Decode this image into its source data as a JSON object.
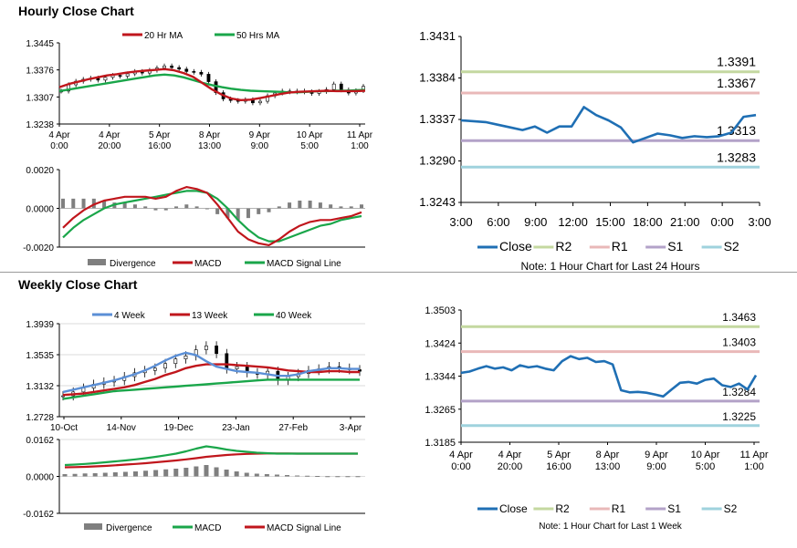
{
  "sections": {
    "hourly_title": "Hourly Close Chart",
    "weekly_title": "Weekly Close Chart"
  },
  "colors": {
    "close": "#1f6fb4",
    "ma20": "#c0161c",
    "ma50": "#1aa64a",
    "r2": "#c4d8a0",
    "r1": "#e9b8b8",
    "s1": "#b3a2c8",
    "s2": "#9fd2dd",
    "divergence": "#7f7f7f",
    "week4": "#5b8fd6"
  },
  "chart_data": [
    {
      "id": "hourly_price",
      "type": "candlestick",
      "ylim": [
        1.3238,
        1.3445
      ],
      "yticks": [
        "1.3445",
        "1.3376",
        "1.3307",
        "1.3238"
      ],
      "x_tick_labels": [
        [
          "4 Apr",
          "0:00"
        ],
        [
          "4 Apr",
          "20:00"
        ],
        [
          "5 Apr",
          "16:00"
        ],
        [
          "8 Apr",
          "13:00"
        ],
        [
          "9 Apr",
          "9:00"
        ],
        [
          "10 Apr",
          "5:00"
        ],
        [
          "11 Apr",
          "1:00"
        ]
      ],
      "legend": [
        "20 Hr MA",
        "50 Hrs MA"
      ],
      "close": [
        1.3322,
        1.3338,
        1.3347,
        1.3352,
        1.3355,
        1.335,
        1.3357,
        1.3362,
        1.336,
        1.3366,
        1.3372,
        1.3368,
        1.3375,
        1.3381,
        1.3386,
        1.3382,
        1.3378,
        1.3372,
        1.337,
        1.3365,
        1.3346,
        1.3318,
        1.3302,
        1.3298,
        1.3296,
        1.33,
        1.3292,
        1.3296,
        1.331,
        1.3317,
        1.3322,
        1.332,
        1.3322,
        1.332,
        1.3316,
        1.3321,
        1.3326,
        1.334,
        1.3325,
        1.3317,
        1.3323,
        1.3334
      ],
      "ma20": [
        1.3332,
        1.334,
        1.3346,
        1.3352,
        1.3357,
        1.3362,
        1.3365,
        1.3369,
        1.3372,
        1.3374,
        1.3376,
        1.3378,
        1.3375,
        1.3368,
        1.3358,
        1.3342,
        1.3326,
        1.3313,
        1.3303,
        1.3299,
        1.33,
        1.3304,
        1.3309,
        1.3314,
        1.3318,
        1.332,
        1.3321,
        1.3322,
        1.3323,
        1.3322,
        1.3322,
        1.3322,
        1.3323
      ],
      "ma50": [
        1.3322,
        1.3326,
        1.333,
        1.3334,
        1.3338,
        1.3342,
        1.3346,
        1.335,
        1.3354,
        1.3358,
        1.3362,
        1.3364,
        1.3362,
        1.3357,
        1.335,
        1.3343,
        1.3337,
        1.3332,
        1.3328,
        1.3325,
        1.3323,
        1.3322,
        1.3321,
        1.332,
        1.3319,
        1.3319,
        1.332,
        1.3322,
        1.3322,
        1.3323,
        1.3323,
        1.3324,
        1.3325
      ]
    },
    {
      "id": "hourly_macd",
      "type": "macd",
      "ylim": [
        -0.002,
        0.002
      ],
      "yticks": [
        "0.0020",
        "0.0000",
        "-0.0020"
      ],
      "legend": [
        "Divergence",
        "MACD",
        "MACD Signal Line"
      ],
      "macd": [
        -0.001,
        -0.0005,
        -0.0001,
        0.0002,
        0.0004,
        0.0005,
        0.0006,
        0.0006,
        0.0006,
        0.0005,
        0.0006,
        0.0009,
        0.0011,
        0.001,
        0.0008,
        0.0002,
        -0.0005,
        -0.0012,
        -0.0016,
        -0.0018,
        -0.0019,
        -0.0016,
        -0.0012,
        -0.0009,
        -0.0007,
        -0.0006,
        -0.0006,
        -0.0005,
        -0.0004,
        -0.0002
      ],
      "signal": [
        -0.0015,
        -0.001,
        -0.0006,
        -0.0003,
        0.0,
        0.0002,
        0.0003,
        0.0004,
        0.0005,
        0.0006,
        0.0007,
        0.0008,
        0.0009,
        0.0009,
        0.0008,
        0.0005,
        0.0,
        -0.0006,
        -0.0011,
        -0.0015,
        -0.0017,
        -0.0017,
        -0.0015,
        -0.0013,
        -0.0011,
        -0.0009,
        -0.0008,
        -0.0006,
        -0.0005,
        -0.0004
      ],
      "divergence": [
        0.0005,
        0.0005,
        0.0005,
        0.0005,
        0.0004,
        0.0003,
        0.0003,
        0.0002,
        0.0001,
        -0.0001,
        -0.0001,
        0.0001,
        0.0002,
        0.0001,
        0.0,
        -0.0003,
        -0.0005,
        -0.0006,
        -0.0005,
        -0.0003,
        -0.0002,
        0.0001,
        0.0003,
        0.0004,
        0.0004,
        0.0003,
        0.0002,
        0.0001,
        0.0001,
        0.0002
      ]
    },
    {
      "id": "hourly_24h",
      "type": "line",
      "ylim": [
        1.3243,
        1.3431
      ],
      "yticks": [
        "1.3431",
        "1.3384",
        "1.3337",
        "1.3290",
        "1.3243"
      ],
      "xticks": [
        "3:00",
        "6:00",
        "9:00",
        "12:00",
        "15:00",
        "18:00",
        "21:00",
        "0:00",
        "3:00"
      ],
      "close": [
        1.3336,
        1.3335,
        1.3334,
        1.3331,
        1.3328,
        1.3325,
        1.3329,
        1.3322,
        1.3329,
        1.3329,
        1.3351,
        1.3342,
        1.3336,
        1.3328,
        1.3311,
        1.3316,
        1.3321,
        1.3319,
        1.3316,
        1.3318,
        1.3317,
        1.3318,
        1.3322,
        1.334,
        1.3342
      ],
      "levels": [
        {
          "name": "R2",
          "value": 1.3391,
          "label": "1.3391"
        },
        {
          "name": "R1",
          "value": 1.3367,
          "label": "1.3367"
        },
        {
          "name": "S1",
          "value": 1.3313,
          "label": "1.3313"
        },
        {
          "name": "S2",
          "value": 1.3283,
          "label": "1.3283"
        }
      ],
      "legend": [
        "Close",
        "R2",
        "R1",
        "S1",
        "S2"
      ],
      "note": "Note: 1 Hour Chart for Last 24 Hours"
    },
    {
      "id": "weekly_price",
      "type": "candlestick",
      "ylim": [
        1.2728,
        1.3939
      ],
      "yticks": [
        "1.3939",
        "1.3535",
        "1.3132",
        "1.2728"
      ],
      "xticks": [
        "10-Oct",
        "14-Nov",
        "19-Dec",
        "23-Jan",
        "27-Feb",
        "3-Apr"
      ],
      "legend": [
        "4 Week",
        "13 Week",
        "40 Week"
      ],
      "close": [
        1.3,
        1.305,
        1.31,
        1.315,
        1.318,
        1.32,
        1.325,
        1.33,
        1.333,
        1.336,
        1.342,
        1.348,
        1.352,
        1.36,
        1.365,
        1.355,
        1.335,
        1.338,
        1.33,
        1.328,
        1.332,
        1.32,
        1.325,
        1.329,
        1.333,
        1.335,
        1.338,
        1.336,
        1.334,
        1.332
      ],
      "week4": [
        1.305,
        1.308,
        1.311,
        1.314,
        1.317,
        1.32,
        1.324,
        1.328,
        1.333,
        1.339,
        1.346,
        1.352,
        1.356,
        1.353,
        1.345,
        1.338,
        1.335,
        1.332,
        1.331,
        1.33,
        1.328,
        1.326,
        1.326,
        1.328,
        1.332,
        1.334,
        1.336,
        1.336,
        1.335,
        1.335
      ],
      "week13": [
        1.301,
        1.302,
        1.303,
        1.305,
        1.307,
        1.309,
        1.311,
        1.314,
        1.318,
        1.322,
        1.327,
        1.331,
        1.336,
        1.339,
        1.341,
        1.341,
        1.341,
        1.34,
        1.339,
        1.338,
        1.337,
        1.335,
        1.333,
        1.332,
        1.331,
        1.331,
        1.332,
        1.332,
        1.331,
        1.331
      ],
      "week40": [
        1.296,
        1.298,
        1.3,
        1.302,
        1.304,
        1.306,
        1.307,
        1.308,
        1.309,
        1.31,
        1.311,
        1.312,
        1.313,
        1.314,
        1.315,
        1.316,
        1.317,
        1.318,
        1.319,
        1.32,
        1.321,
        1.321,
        1.321,
        1.321,
        1.321,
        1.321,
        1.321,
        1.321,
        1.321,
        1.321
      ]
    },
    {
      "id": "weekly_macd",
      "type": "macd",
      "ylim": [
        -0.0162,
        0.0162
      ],
      "yticks": [
        "0.0162",
        "0.0000",
        "-0.0162"
      ],
      "legend": [
        "Divergence",
        "MACD",
        "MACD Signal Line"
      ],
      "macd": [
        0.005,
        0.0052,
        0.0055,
        0.0058,
        0.0062,
        0.0066,
        0.007,
        0.0075,
        0.008,
        0.0086,
        0.0093,
        0.01,
        0.011,
        0.0122,
        0.0132,
        0.0126,
        0.0118,
        0.0112,
        0.0108,
        0.0104,
        0.0102,
        0.01,
        0.01,
        0.01,
        0.01,
        0.01,
        0.01,
        0.01,
        0.01,
        0.01
      ],
      "signal": [
        0.004,
        0.0041,
        0.0042,
        0.0044,
        0.0046,
        0.0049,
        0.0052,
        0.0055,
        0.0058,
        0.0062,
        0.0066,
        0.007,
        0.0075,
        0.008,
        0.0086,
        0.009,
        0.0094,
        0.0097,
        0.0099,
        0.01,
        0.0101,
        0.0101,
        0.0101,
        0.01,
        0.01,
        0.01,
        0.01,
        0.01,
        0.01,
        0.01
      ],
      "divergence": [
        0.001,
        0.0011,
        0.0013,
        0.0014,
        0.0016,
        0.0018,
        0.002,
        0.0022,
        0.0025,
        0.0028,
        0.0031,
        0.0034,
        0.0038,
        0.0044,
        0.005,
        0.004,
        0.003,
        0.0022,
        0.0016,
        0.0012,
        0.001,
        0.0008,
        0.0006,
        0.0004,
        0.0003,
        0.0002,
        0.0001,
        0.0001,
        0.0001,
        0.0001
      ]
    },
    {
      "id": "weekly_1w",
      "type": "line",
      "ylim": [
        1.3185,
        1.3503
      ],
      "yticks": [
        "1.3503",
        "1.3424",
        "1.3344",
        "1.3265",
        "1.3185"
      ],
      "x_tick_labels": [
        [
          "4 Apr",
          "0:00"
        ],
        [
          "4 Apr",
          "20:00"
        ],
        [
          "5 Apr",
          "16:00"
        ],
        [
          "8 Apr",
          "13:00"
        ],
        [
          "9 Apr",
          "9:00"
        ],
        [
          "10 Apr",
          "5:00"
        ],
        [
          "11 Apr",
          "1:00"
        ]
      ],
      "close": [
        1.3352,
        1.3355,
        1.3362,
        1.3368,
        1.3362,
        1.3365,
        1.3358,
        1.337,
        1.3365,
        1.3368,
        1.3362,
        1.3358,
        1.338,
        1.3392,
        1.3385,
        1.3388,
        1.3378,
        1.338,
        1.3372,
        1.331,
        1.3305,
        1.3306,
        1.3304,
        1.33,
        1.3295,
        1.3312,
        1.3328,
        1.333,
        1.3326,
        1.3335,
        1.3338,
        1.3322,
        1.3318,
        1.3326,
        1.3312,
        1.3346
      ],
      "levels": [
        {
          "name": "R2",
          "value": 1.3463,
          "label": "1.3463"
        },
        {
          "name": "R1",
          "value": 1.3403,
          "label": "1.3403"
        },
        {
          "name": "S1",
          "value": 1.3284,
          "label": "1.3284"
        },
        {
          "name": "S2",
          "value": 1.3225,
          "label": "1.3225"
        }
      ],
      "legend": [
        "Close",
        "R2",
        "R1",
        "S1",
        "S2"
      ],
      "note": "Note: 1 Hour Chart for Last 1 Week"
    }
  ]
}
